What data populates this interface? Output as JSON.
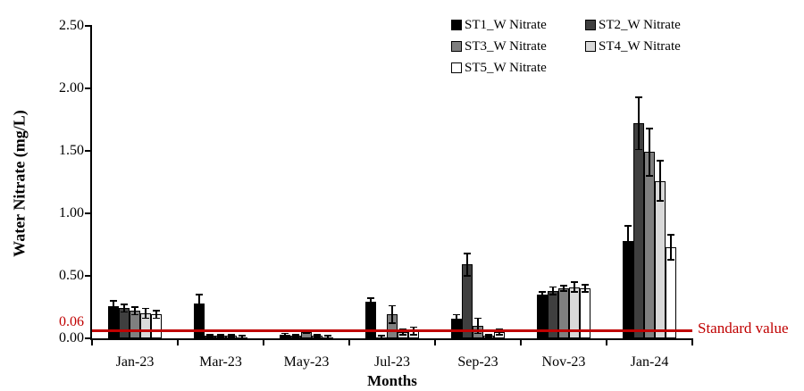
{
  "chart_data": {
    "type": "bar",
    "title": "",
    "xlabel": "Months",
    "ylabel": "Water Nitrate (mg/L)",
    "ylim": [
      0,
      2.5
    ],
    "ytick_step": 0.5,
    "ytick_labels": [
      "0.00",
      "0.50",
      "1.00",
      "1.50",
      "2.00",
      "2.50"
    ],
    "extra_ytick": {
      "label": "0.06",
      "value": 0.06,
      "color": "#C00000"
    },
    "categories": [
      "Jan-23",
      "Mar-23",
      "May-23",
      "Jul-23",
      "Sep-23",
      "Nov-23",
      "Jan-24"
    ],
    "series": [
      {
        "name": "ST1_W Nitrate",
        "color": "#000000",
        "values": [
          0.26,
          0.28,
          0.03,
          0.29,
          0.16,
          0.35,
          0.78
        ],
        "errors": [
          0.04,
          0.07,
          0.01,
          0.03,
          0.03,
          0.02,
          0.12
        ]
      },
      {
        "name": "ST2_W Nitrate",
        "color": "#3F3F3F",
        "values": [
          0.24,
          0.02,
          0.02,
          0.01,
          0.59,
          0.38,
          1.72
        ],
        "errors": [
          0.03,
          0.01,
          0.01,
          0.01,
          0.09,
          0.03,
          0.21
        ]
      },
      {
        "name": "ST3_W Nitrate",
        "color": "#7F7F7F",
        "values": [
          0.22,
          0.02,
          0.05,
          0.19,
          0.1,
          0.4,
          1.49
        ],
        "errors": [
          0.03,
          0.01,
          0.01,
          0.07,
          0.06,
          0.02,
          0.19
        ]
      },
      {
        "name": "ST4_W Nitrate",
        "color": "#D9D9D9",
        "values": [
          0.2,
          0.02,
          0.02,
          0.05,
          0.02,
          0.41,
          1.26
        ],
        "errors": [
          0.04,
          0.01,
          0.01,
          0.02,
          0.01,
          0.04,
          0.16
        ]
      },
      {
        "name": "ST5_W Nitrate",
        "color": "#FFFFFF",
        "values": [
          0.19,
          0.01,
          0.01,
          0.06,
          0.05,
          0.4,
          0.73
        ],
        "errors": [
          0.03,
          0.01,
          0.01,
          0.03,
          0.02,
          0.03,
          0.1
        ]
      }
    ],
    "reference_line": {
      "value": 0.06,
      "label": "Standard value",
      "color": "#C00000"
    },
    "legend_position": "top-center",
    "grid": false
  }
}
